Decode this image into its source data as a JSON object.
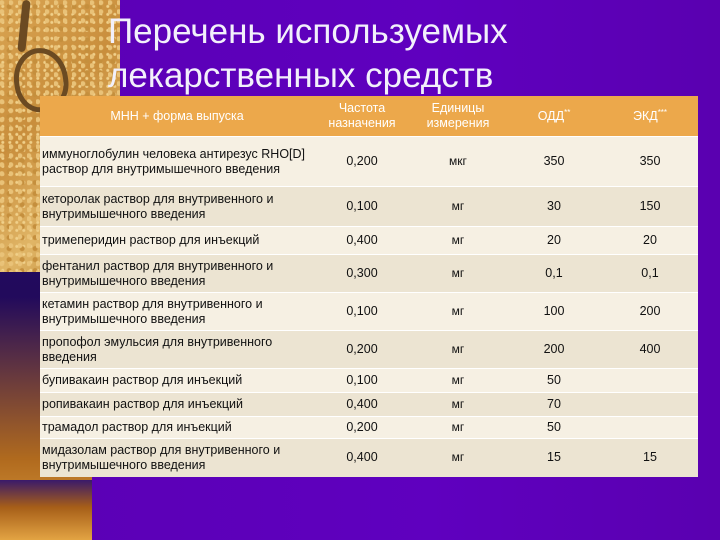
{
  "title_line1": "Перечень используемых",
  "title_line2": "лекарственных средств",
  "header": {
    "name": "МНН + форма выпуска",
    "freq_line1": "Частота",
    "freq_line2": "назначения",
    "unit_line1": "Единицы",
    "unit_line2": "измерения",
    "odd": "ОДД",
    "odd_sup": "**",
    "ekd": "ЭКД",
    "ekd_sup": "***"
  },
  "rows": [
    {
      "name": "иммуноглобулин человека антирезус RHO[D] раствор для внутримышечного введения",
      "freq": "0,200",
      "unit": "мкг",
      "odd": "350",
      "ekd": "350"
    },
    {
      "name": "кеторолак раствор для внутривенного и внутримышечного введения",
      "freq": "0,100",
      "unit": "мг",
      "odd": "30",
      "ekd": "150"
    },
    {
      "name": "тримеперидин раствор для инъекций",
      "freq": "0,400",
      "unit": "мг",
      "odd": "20",
      "ekd": "20"
    },
    {
      "name": "фентанил раствор для внутривенного и внутримышечного введения",
      "freq": "0,300",
      "unit": "мг",
      "odd": "0,1",
      "ekd": "0,1"
    },
    {
      "name": "кетамин раствор для внутривенного и внутримышечного введения",
      "freq": "0,100",
      "unit": "мг",
      "odd": "100",
      "ekd": "200"
    },
    {
      "name": "пропофол эмульсия для внутривенного введения",
      "freq": "0,200",
      "unit": "мг",
      "odd": "200",
      "ekd": "400"
    },
    {
      "name": "бупивакаин раствор для инъекций",
      "freq": "0,100",
      "unit": "мг",
      "odd": "50",
      "ekd": ""
    },
    {
      "name": "ропивакаин раствор для инъекций",
      "freq": "0,400",
      "unit": "мг",
      "odd": "70",
      "ekd": ""
    },
    {
      "name": "трамадол раствор для инъекций",
      "freq": "0,200",
      "unit": "мг",
      "odd": "50",
      "ekd": ""
    },
    {
      "name": "мидазолам раствор для внутривенного и внутримышечного введения",
      "freq": "0,400",
      "unit": "мг",
      "odd": "15",
      "ekd": "15"
    }
  ]
}
